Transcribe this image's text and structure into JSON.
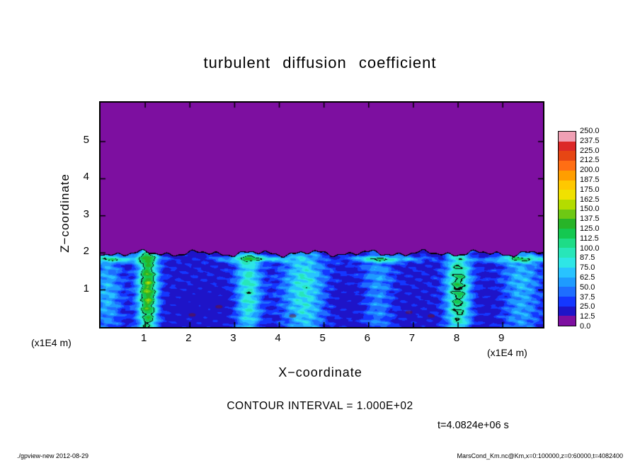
{
  "title": "turbulent diffusion coefficient",
  "axes": {
    "x_label": "X−coordinate",
    "y_label": "Z−coordinate",
    "x_ticks": [
      "1",
      "2",
      "3",
      "4",
      "5",
      "6",
      "7",
      "8",
      "9"
    ],
    "y_ticks": [
      "5",
      "4",
      "3",
      "2",
      "1"
    ],
    "x_unit_left": "(x1E4 m)",
    "x_unit_right": "(x1E4 m)"
  },
  "colorbar": {
    "labels": [
      "250.0",
      "237.5",
      "225.0",
      "212.5",
      "200.0",
      "187.5",
      "175.0",
      "162.5",
      "150.0",
      "137.5",
      "125.0",
      "112.5",
      "100.0",
      "87.5",
      "75.0",
      "62.5",
      "50.0",
      "37.5",
      "25.0",
      "12.5",
      "0.0"
    ],
    "colors": [
      "#f0a0b4",
      "#dc2828",
      "#e64614",
      "#ff6e14",
      "#ff9e00",
      "#ffc800",
      "#f0e100",
      "#b4dc00",
      "#6ec814",
      "#28b428",
      "#14c850",
      "#1edc87",
      "#28e6b9",
      "#2ee6e6",
      "#28c3ff",
      "#1e9bff",
      "#1e6eff",
      "#1437ff",
      "#1e14c8",
      "#7d0fa0"
    ]
  },
  "annotations": {
    "contour_interval": "CONTOUR INTERVAL = 1.000E+02",
    "time": "t=4.0824e+06 s"
  },
  "footer": {
    "left": "./gpview-new  2012-08-29",
    "right": "MarsCond_Km.nc@Km,x=0:100000,z=0:60000,t=4082400"
  },
  "chart_data": {
    "type": "heatmap",
    "title": "turbulent diffusion coefficient",
    "xlabel": "X−coordinate",
    "ylabel": "Z−coordinate",
    "x_units": "x1E4 m",
    "y_units": "x1E4 m",
    "xlim": [
      0,
      9.9
    ],
    "ylim": [
      0,
      6
    ],
    "x_ticks": [
      1,
      2,
      3,
      4,
      5,
      6,
      7,
      8,
      9
    ],
    "y_ticks": [
      1,
      2,
      3,
      4,
      5
    ],
    "grid": false,
    "legend_position": "colorbar-right",
    "contour_interval": 100.0,
    "time": "t=4.0824e+06 s",
    "colorbar_levels": [
      0,
      12.5,
      25,
      37.5,
      50,
      62.5,
      75,
      87.5,
      100,
      112.5,
      125,
      137.5,
      150,
      162.5,
      175,
      187.5,
      200,
      212.5,
      225,
      237.5,
      250
    ],
    "field_description": {
      "upper_region": "z = 2 to 6: uniform minimum value 0-12.5 (purple), separated from lower layer by a wiggly black contour line at z = 2",
      "lower_region": "z = 0 to 2: turbulent convective boundary layer, mostly 12.5-75 (dark blue background with cyan streaks and swirls), bright cyan plumes near x = 1, 3.3, 4.6 and 8, a thin enhanced bright layer just below the z = 2 interface, small patches exceeding 100 (green, outlined by the 100-contour) near x = 1 z = 1.4, x = 4.3 z = 1.8 and x = 7.9 z = 1.7, and a few small dark maroon specks near the bottom around x = 2, 4.3 and 6.9"
    }
  }
}
